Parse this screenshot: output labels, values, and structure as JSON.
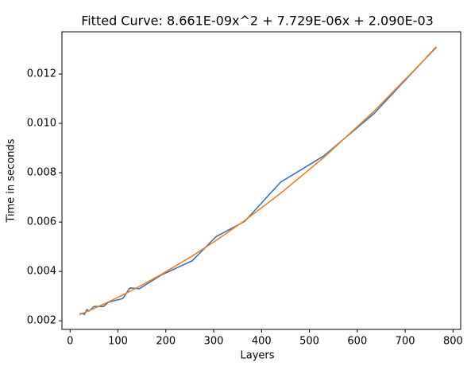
{
  "chart_data": {
    "type": "line",
    "title": "Fitted Curve: 8.661E-09x^2 + 7.729E-06x + 2.090E-03",
    "x_label": "Layers",
    "y_label": "Time in seconds",
    "x": [
      20,
      25,
      30,
      35,
      40,
      50,
      60,
      70,
      80,
      100,
      110,
      125,
      145,
      190,
      255,
      305,
      365,
      440,
      530,
      635,
      765
    ],
    "series": [
      {
        "color": "#3a75af",
        "values": [
          0.00228,
          0.0023,
          0.00226,
          0.00245,
          0.0024,
          0.00258,
          0.00258,
          0.00258,
          0.00275,
          0.00285,
          0.0029,
          0.00333,
          0.0033,
          0.00385,
          0.00443,
          0.00541,
          0.00603,
          0.00762,
          0.00868,
          0.0104,
          0.0131
        ]
      },
      {
        "color": "#ef7f26",
        "values": [
          0.002248,
          0.002289,
          0.00233,
          0.002371,
          0.002413,
          0.002498,
          0.002585,
          0.002673,
          0.002764,
          0.00295,
          0.003045,
          0.003191,
          0.003393,
          0.003871,
          0.004624,
          0.005253,
          0.006065,
          0.007168,
          0.008619,
          0.01049,
          0.013071
        ]
      }
    ],
    "xlim": [
      -17,
      816
    ],
    "xticks": [
      0,
      100,
      200,
      300,
      400,
      500,
      600,
      700,
      800
    ],
    "ylim": [
      0.00165,
      0.01371
    ],
    "yticks": [
      0.002,
      0.004,
      0.006,
      0.008,
      {
        "value": 0.01,
        "label": "0.010"
      },
      0.012
    ]
  }
}
